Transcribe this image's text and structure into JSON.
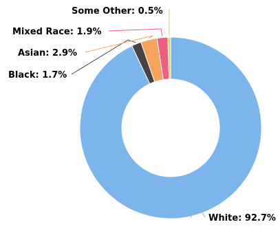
{
  "chart_data": {
    "type": "pie",
    "variant": "donut",
    "title": "",
    "legend": "none",
    "slices": [
      {
        "name": "White",
        "value": 92.7,
        "label": "White: 92.7%",
        "color": "#7cb5ec"
      },
      {
        "name": "Black",
        "value": 1.7,
        "label": "Black: 1.7%",
        "color": "#434348"
      },
      {
        "name": "Asian",
        "value": 2.9,
        "label": "Asian: 2.9%",
        "color": "#f7a35c"
      },
      {
        "name": "Mixed Race",
        "value": 1.9,
        "label": "Mixed Race: 1.9%",
        "color": "#f15c80"
      },
      {
        "name": "Some Other",
        "value": 0.5,
        "label": "Some Other: 0.5%",
        "color": "#e4d354"
      }
    ]
  }
}
